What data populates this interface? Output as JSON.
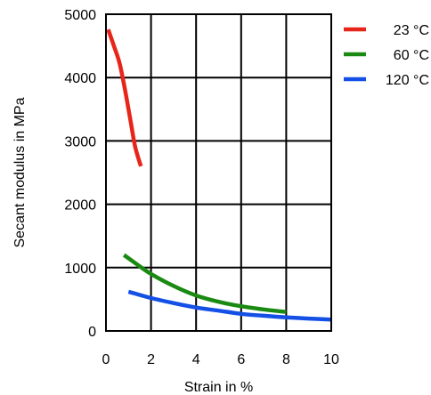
{
  "chart_data": {
    "type": "line",
    "title": "",
    "xlabel": "Strain in %",
    "ylabel": "Secant modulus in MPa",
    "xlim": [
      0,
      10
    ],
    "ylim": [
      0,
      5000
    ],
    "x_ticks": [
      "0",
      "2",
      "4",
      "6",
      "8",
      "10"
    ],
    "y_ticks": [
      "0",
      "1000",
      "2000",
      "3000",
      "4000",
      "5000"
    ],
    "grid": true,
    "legend_position": "right",
    "series": [
      {
        "name": "23 °C",
        "color": "#e8251a",
        "x": [
          0.1,
          0.35,
          0.6,
          0.85,
          1.1,
          1.3,
          1.55
        ],
        "y": [
          4760,
          4500,
          4230,
          3800,
          3300,
          2900,
          2600
        ]
      },
      {
        "name": "60 °C",
        "color": "#1a8a12",
        "x": [
          0.8,
          1.5,
          2.0,
          3.0,
          4.0,
          5.0,
          6.0,
          7.0,
          8.0
        ],
        "y": [
          1200,
          1020,
          900,
          710,
          560,
          460,
          390,
          340,
          300
        ]
      },
      {
        "name": "120 °C",
        "color": "#1450e6",
        "x": [
          1.0,
          2.0,
          3.0,
          4.0,
          5.0,
          6.0,
          7.0,
          8.0,
          9.0,
          10.0
        ],
        "y": [
          620,
          520,
          440,
          370,
          320,
          270,
          240,
          215,
          195,
          180
        ]
      }
    ]
  }
}
